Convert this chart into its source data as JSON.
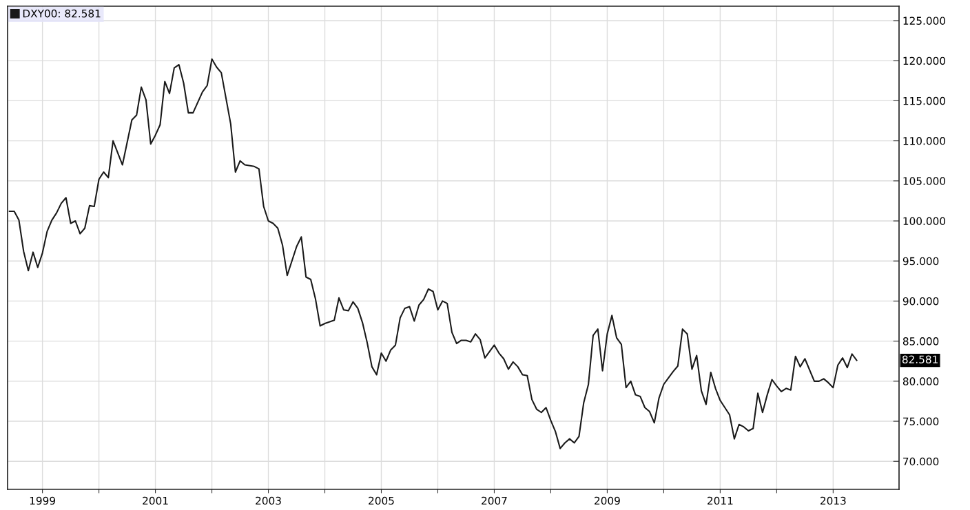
{
  "chart_data": {
    "type": "line",
    "x": [
      "1998-06",
      "1998-07",
      "1998-08",
      "1998-09",
      "1998-10",
      "1998-11",
      "1998-12",
      "1999-01",
      "1999-02",
      "1999-03",
      "1999-04",
      "1999-05",
      "1999-06",
      "1999-07",
      "1999-08",
      "1999-09",
      "1999-10",
      "1999-11",
      "1999-12",
      "2000-01",
      "2000-02",
      "2000-03",
      "2000-04",
      "2000-06",
      "2000-08",
      "2000-09",
      "2000-10",
      "2000-11",
      "2000-12",
      "2001-01",
      "2001-02",
      "2001-03",
      "2001-04",
      "2001-05",
      "2001-06",
      "2001-07",
      "2001-08",
      "2001-09",
      "2001-11",
      "2001-12",
      "2002-01",
      "2002-02",
      "2002-03",
      "2002-04",
      "2002-05",
      "2002-06",
      "2002-07",
      "2002-08",
      "2002-10",
      "2002-11",
      "2002-12",
      "2003-01",
      "2003-02",
      "2003-03",
      "2003-04",
      "2003-05",
      "2003-06",
      "2003-07",
      "2003-08",
      "2003-09",
      "2003-10",
      "2003-11",
      "2003-12",
      "2004-01",
      "2004-03",
      "2004-04",
      "2004-05",
      "2004-06",
      "2004-07",
      "2004-08",
      "2004-09",
      "2004-10",
      "2004-11",
      "2004-12",
      "2005-01",
      "2005-02",
      "2005-03",
      "2005-04",
      "2005-05",
      "2005-06",
      "2005-07",
      "2005-08",
      "2005-09",
      "2005-10",
      "2005-11",
      "2005-12",
      "2006-01",
      "2006-02",
      "2006-03",
      "2006-04",
      "2006-05",
      "2006-06",
      "2006-07",
      "2006-08",
      "2006-09",
      "2006-10",
      "2006-11",
      "2007-01",
      "2007-02",
      "2007-03",
      "2007-04",
      "2007-05",
      "2007-06",
      "2007-07",
      "2007-08",
      "2007-09",
      "2007-10",
      "2007-11",
      "2007-12",
      "2008-01",
      "2008-02",
      "2008-03",
      "2008-04",
      "2008-05",
      "2008-06",
      "2008-07",
      "2008-08",
      "2008-09",
      "2008-10",
      "2008-11",
      "2008-12",
      "2009-01",
      "2009-02",
      "2009-03",
      "2009-04",
      "2009-05",
      "2009-06",
      "2009-07",
      "2009-08",
      "2009-09",
      "2009-10",
      "2009-11",
      "2009-12",
      "2010-01",
      "2010-02",
      "2010-03",
      "2010-04",
      "2010-05",
      "2010-06",
      "2010-07",
      "2010-08",
      "2010-09",
      "2010-10",
      "2010-11",
      "2010-12",
      "2011-01",
      "2011-02",
      "2011-03",
      "2011-04",
      "2011-05",
      "2011-06",
      "2011-07",
      "2011-08",
      "2011-09",
      "2011-10",
      "2011-11",
      "2011-12",
      "2012-01",
      "2012-02",
      "2012-03",
      "2012-04",
      "2012-05",
      "2012-06",
      "2012-07",
      "2012-09",
      "2012-10",
      "2012-11",
      "2012-12",
      "2013-01",
      "2013-02",
      "2013-03",
      "2013-04",
      "2013-05",
      "2013-06"
    ],
    "series": [
      {
        "name": "DXY00: 82.581",
        "color": "#1a1a1a",
        "values": [
          101.2,
          101.2,
          100.1,
          96.2,
          93.8,
          96.1,
          94.2,
          96.0,
          98.7,
          100.1,
          101.0,
          102.2,
          102.9,
          99.7,
          100.0,
          98.4,
          99.1,
          101.9,
          101.8,
          105.2,
          106.1,
          105.4,
          110.0,
          107.0,
          112.6,
          113.2,
          116.7,
          115.1,
          109.6,
          110.7,
          112.0,
          117.4,
          115.9,
          119.1,
          119.5,
          117.2,
          113.5,
          113.5,
          116.1,
          116.9,
          120.2,
          119.2,
          118.5,
          115.3,
          112.1,
          106.1,
          107.5,
          107.0,
          106.8,
          106.5,
          101.8,
          100.0,
          99.7,
          99.1,
          97.0,
          93.2,
          95.0,
          96.8,
          98.0,
          93.0,
          92.7,
          90.3,
          86.9,
          87.2,
          87.6,
          90.4,
          88.9,
          88.8,
          89.9,
          89.1,
          87.3,
          84.8,
          81.8,
          80.8,
          83.5,
          82.5,
          83.9,
          84.5,
          87.9,
          89.1,
          89.3,
          87.5,
          89.5,
          90.2,
          91.5,
          91.2,
          88.9,
          90.0,
          89.7,
          86.1,
          84.7,
          85.1,
          85.1,
          84.9,
          85.9,
          85.2,
          82.9,
          84.5,
          83.5,
          82.8,
          81.5,
          82.4,
          81.8,
          80.8,
          80.7,
          77.7,
          76.5,
          76.1,
          76.7,
          75.1,
          73.7,
          71.6,
          72.3,
          72.8,
          72.3,
          73.1,
          77.3,
          79.6,
          85.7,
          86.5,
          81.3,
          85.9,
          88.2,
          85.4,
          84.6,
          79.2,
          80.0,
          78.3,
          78.1,
          76.7,
          76.2,
          74.8,
          77.9,
          79.6,
          80.4,
          81.2,
          81.9,
          86.5,
          85.9,
          81.5,
          83.2,
          78.8,
          77.1,
          81.1,
          79.1,
          77.6,
          76.7,
          75.8,
          72.8,
          74.6,
          74.3,
          73.8,
          74.1,
          78.5,
          76.1,
          78.3,
          80.2,
          79.4,
          78.7,
          79.1,
          78.9,
          83.1,
          81.8,
          82.8,
          80.0,
          80.0,
          80.3,
          79.8,
          79.2,
          82.0,
          82.9,
          81.7,
          83.4,
          82.6
        ]
      }
    ],
    "xlim": [
      "1998-05-19",
      "2014-03-01"
    ],
    "xticks": [
      {
        "value": "1999",
        "label": "1999"
      },
      {
        "value": "2000",
        "label": null
      },
      {
        "value": "2001",
        "label": "2001"
      },
      {
        "value": "2002",
        "label": null
      },
      {
        "value": "2003",
        "label": "2003"
      },
      {
        "value": "2004",
        "label": null
      },
      {
        "value": "2005",
        "label": "2005"
      },
      {
        "value": "2006",
        "label": null
      },
      {
        "value": "2007",
        "label": "2007"
      },
      {
        "value": "2008",
        "label": null
      },
      {
        "value": "2009",
        "label": "2009"
      },
      {
        "value": "2010",
        "label": null
      },
      {
        "value": "2011",
        "label": "2011"
      },
      {
        "value": "2012",
        "label": null
      },
      {
        "value": "2013",
        "label": "2013"
      }
    ],
    "ylim": [
      66.5,
      126.8
    ],
    "yticks": [
      {
        "value": 70,
        "label": "70.000"
      },
      {
        "value": 75,
        "label": "75.000"
      },
      {
        "value": 80,
        "label": "80.000"
      },
      {
        "value": 85,
        "label": "85.000"
      },
      {
        "value": 90,
        "label": "90.000"
      },
      {
        "value": 95,
        "label": "95.000"
      },
      {
        "value": 100,
        "label": "100.000"
      },
      {
        "value": 105,
        "label": "105.000"
      },
      {
        "value": 110,
        "label": "110.000"
      },
      {
        "value": 115,
        "label": "115.000"
      },
      {
        "value": 120,
        "label": "120.000"
      },
      {
        "value": 125,
        "label": "125.000"
      }
    ],
    "annotations": [
      "82.581"
    ],
    "grid": true,
    "legend": "top left",
    "marker": "none",
    "line_style": "solid"
  }
}
